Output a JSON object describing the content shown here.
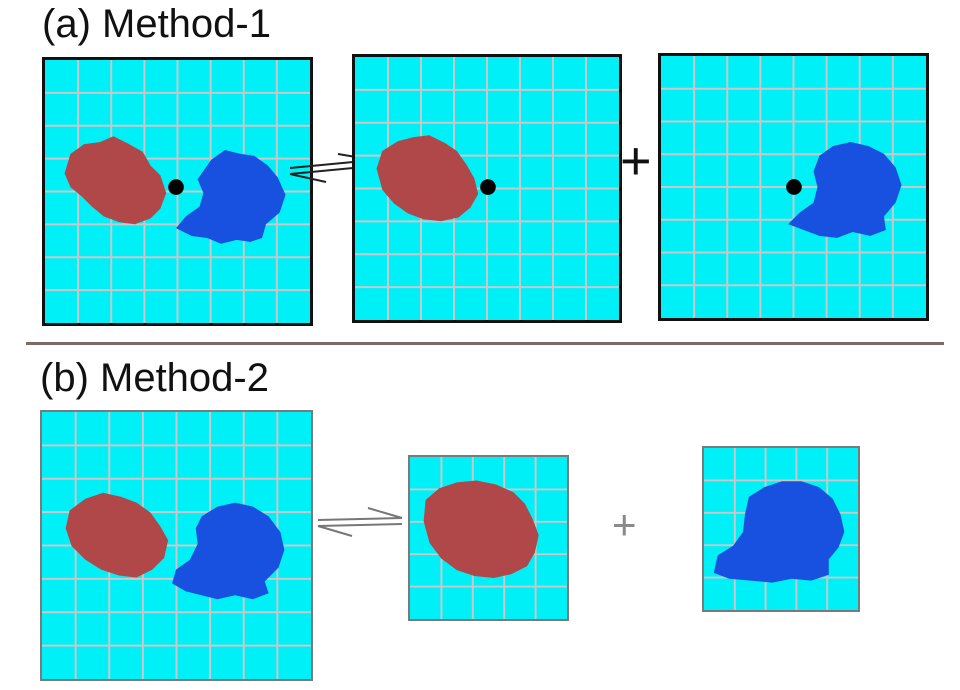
{
  "sections": {
    "a_label": "(a) Method-1",
    "b_label": "(b) Method-2"
  },
  "symbols": {
    "plus": "+"
  },
  "colors": {
    "solvent": "#00f0f8",
    "grid": "#c8c8c8",
    "molecule_red": "#b0484a",
    "molecule_blue": "#1850e0",
    "center_dot": "#000000"
  },
  "icons": [
    "equilibrium-arrows-icon",
    "plus-icon"
  ]
}
